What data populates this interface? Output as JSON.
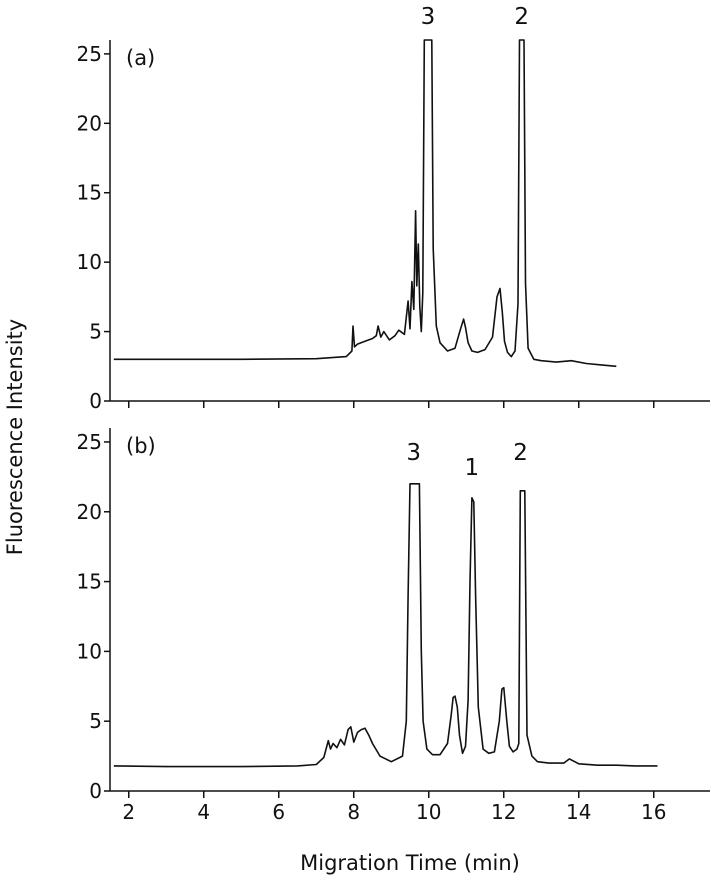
{
  "chart_data": [
    {
      "type": "line",
      "panel_label": "(a)",
      "xlim": [
        1.5,
        17.5
      ],
      "ylim": [
        0,
        26
      ],
      "y_ticks": [
        0,
        5,
        10,
        15,
        20,
        25
      ],
      "x_ticks_shown": false,
      "grid": false,
      "peak_labels": [
        {
          "text": "3",
          "x": 9.98
        },
        {
          "text": "2",
          "x": 12.48
        }
      ],
      "series": [
        {
          "x": [
            1.6,
            3.0,
            5.0,
            7.0,
            7.8,
            7.95,
            7.98,
            8.02,
            8.1,
            8.3,
            8.5,
            8.6,
            8.65,
            8.72,
            8.8,
            8.95,
            9.1,
            9.2,
            9.35,
            9.45,
            9.5,
            9.55,
            9.6,
            9.65,
            9.68,
            9.72,
            9.76,
            9.8,
            9.84,
            9.88,
            9.92,
            9.96,
            10.0,
            10.04,
            10.08,
            10.12,
            10.2,
            10.3,
            10.5,
            10.7,
            10.85,
            10.93,
            10.98,
            11.05,
            11.15,
            11.3,
            11.5,
            11.7,
            11.82,
            11.9,
            11.96,
            12.02,
            12.1,
            12.2,
            12.3,
            12.38,
            12.42,
            12.46,
            12.5,
            12.54,
            12.58,
            12.65,
            12.8,
            13.0,
            13.4,
            13.8,
            14.2,
            14.6,
            15.0
          ],
          "y": [
            3.0,
            3.0,
            3.0,
            3.05,
            3.2,
            3.6,
            5.4,
            3.9,
            4.1,
            4.3,
            4.5,
            4.7,
            5.4,
            4.6,
            5.0,
            4.4,
            4.7,
            5.1,
            4.8,
            7.2,
            5.2,
            8.6,
            6.6,
            13.7,
            8.3,
            11.3,
            6.8,
            5.0,
            7.8,
            26,
            26,
            26,
            26,
            26,
            26,
            11.0,
            5.4,
            4.2,
            3.6,
            3.8,
            5.2,
            5.9,
            5.3,
            4.2,
            3.6,
            3.5,
            3.7,
            4.6,
            7.5,
            8.1,
            6.4,
            4.3,
            3.5,
            3.2,
            3.6,
            7.0,
            26,
            26,
            26,
            26,
            8.5,
            3.8,
            3.0,
            2.9,
            2.8,
            2.9,
            2.7,
            2.6,
            2.5
          ]
        }
      ]
    },
    {
      "type": "line",
      "panel_label": "(b)",
      "xlim": [
        1.5,
        17.5
      ],
      "ylim": [
        0,
        26
      ],
      "y_ticks": [
        0,
        5,
        10,
        15,
        20,
        25
      ],
      "x_ticks": [
        2,
        4,
        6,
        8,
        10,
        12,
        14,
        16
      ],
      "xlabel": "Migration Time (min)",
      "grid": false,
      "peak_labels": [
        {
          "text": "3",
          "x": 9.6
        },
        {
          "text": "1",
          "x": 11.15
        },
        {
          "text": "2",
          "x": 12.45
        }
      ],
      "series": [
        {
          "x": [
            1.6,
            3.0,
            5.0,
            6.5,
            7.0,
            7.2,
            7.32,
            7.38,
            7.45,
            7.55,
            7.65,
            7.75,
            7.85,
            7.92,
            8.0,
            8.1,
            8.2,
            8.3,
            8.4,
            8.5,
            8.7,
            9.0,
            9.3,
            9.4,
            9.45,
            9.5,
            9.55,
            9.6,
            9.65,
            9.7,
            9.75,
            9.8,
            9.85,
            9.95,
            10.1,
            10.3,
            10.5,
            10.6,
            10.65,
            10.7,
            10.76,
            10.82,
            10.9,
            10.98,
            11.05,
            11.1,
            11.15,
            11.2,
            11.25,
            11.32,
            11.45,
            11.6,
            11.75,
            11.88,
            11.95,
            12.0,
            12.08,
            12.15,
            12.25,
            12.35,
            12.4,
            12.44,
            12.48,
            12.52,
            12.56,
            12.62,
            12.75,
            12.9,
            13.2,
            13.6,
            13.75,
            14.0,
            14.5,
            15.0,
            15.5,
            16.1
          ],
          "y": [
            1.8,
            1.75,
            1.75,
            1.8,
            1.9,
            2.4,
            3.6,
            3.0,
            3.4,
            3.1,
            3.7,
            3.3,
            4.4,
            4.6,
            3.5,
            4.2,
            4.4,
            4.5,
            4.0,
            3.4,
            2.5,
            2.1,
            2.5,
            5.0,
            14.0,
            22,
            22,
            22,
            22,
            22,
            22,
            10.0,
            5.0,
            3.0,
            2.6,
            2.6,
            3.4,
            5.5,
            6.7,
            6.8,
            6.0,
            4.0,
            2.7,
            3.2,
            6.5,
            15.0,
            21.0,
            20.7,
            14.0,
            6.0,
            3.0,
            2.7,
            2.8,
            5.0,
            7.3,
            7.4,
            5.0,
            3.2,
            2.8,
            3.0,
            3.4,
            21.5,
            21.5,
            21.5,
            21.5,
            4.0,
            2.5,
            2.1,
            2.0,
            2.0,
            2.3,
            1.95,
            1.85,
            1.85,
            1.8,
            1.8
          ]
        }
      ]
    }
  ],
  "shared_ylabel": "Fluorescence Intensity"
}
